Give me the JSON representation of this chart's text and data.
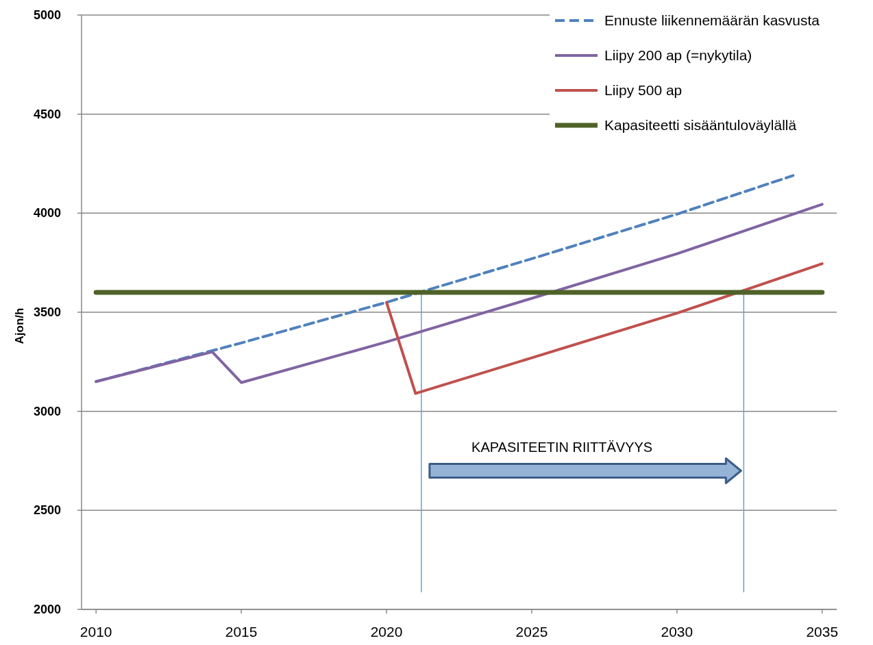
{
  "chart_data": {
    "type": "line",
    "ylabel": "Ajon/h",
    "xlim": [
      2009.5,
      2035.5
    ],
    "xticks": [
      2010,
      2015,
      2020,
      2025,
      2030,
      2035
    ],
    "ylim": [
      2000,
      5000
    ],
    "yticks": [
      2000,
      2500,
      3000,
      3500,
      4000,
      4500,
      5000
    ],
    "grid": "y",
    "legend": "top right",
    "marker": "none",
    "series": [
      {
        "name": "Ennuste liikennemäärän kasvusta",
        "color": "#4f81bd",
        "line_style": "dashed",
        "x": [
          2010,
          2015,
          2020,
          2025,
          2030,
          2034
        ],
        "values": [
          3150,
          3345,
          3550,
          3770,
          3995,
          4190
        ]
      },
      {
        "name": "Liipy 200 ap (=nykytila)",
        "color": "#8064a2",
        "line_style": "solid",
        "x": [
          2010,
          2014,
          2015,
          2020,
          2025,
          2030,
          2035
        ],
        "values": [
          3150,
          3300,
          3145,
          3350,
          3570,
          3795,
          4045
        ]
      },
      {
        "name": "Liipy 500 ap",
        "color": "#c0504d",
        "line_style": "solid",
        "x": [
          2020,
          2021,
          2025,
          2030,
          2035
        ],
        "values": [
          3550,
          3090,
          3270,
          3495,
          3745
        ]
      },
      {
        "name": "Kapasiteetti sisääntuloväylällä",
        "color": "#4f6228",
        "line_style": "solid",
        "x": [
          2010,
          2035
        ],
        "values": [
          3600,
          3600
        ]
      }
    ],
    "ref_lines": [
      {
        "axis": "x",
        "value": 2021.2,
        "color": "#6a9fd4"
      },
      {
        "axis": "x",
        "value": 2032.3,
        "color": "#6a9fd4"
      }
    ],
    "annotations": [
      "KAPASITEETIN RIITTÄVYYS"
    ]
  }
}
